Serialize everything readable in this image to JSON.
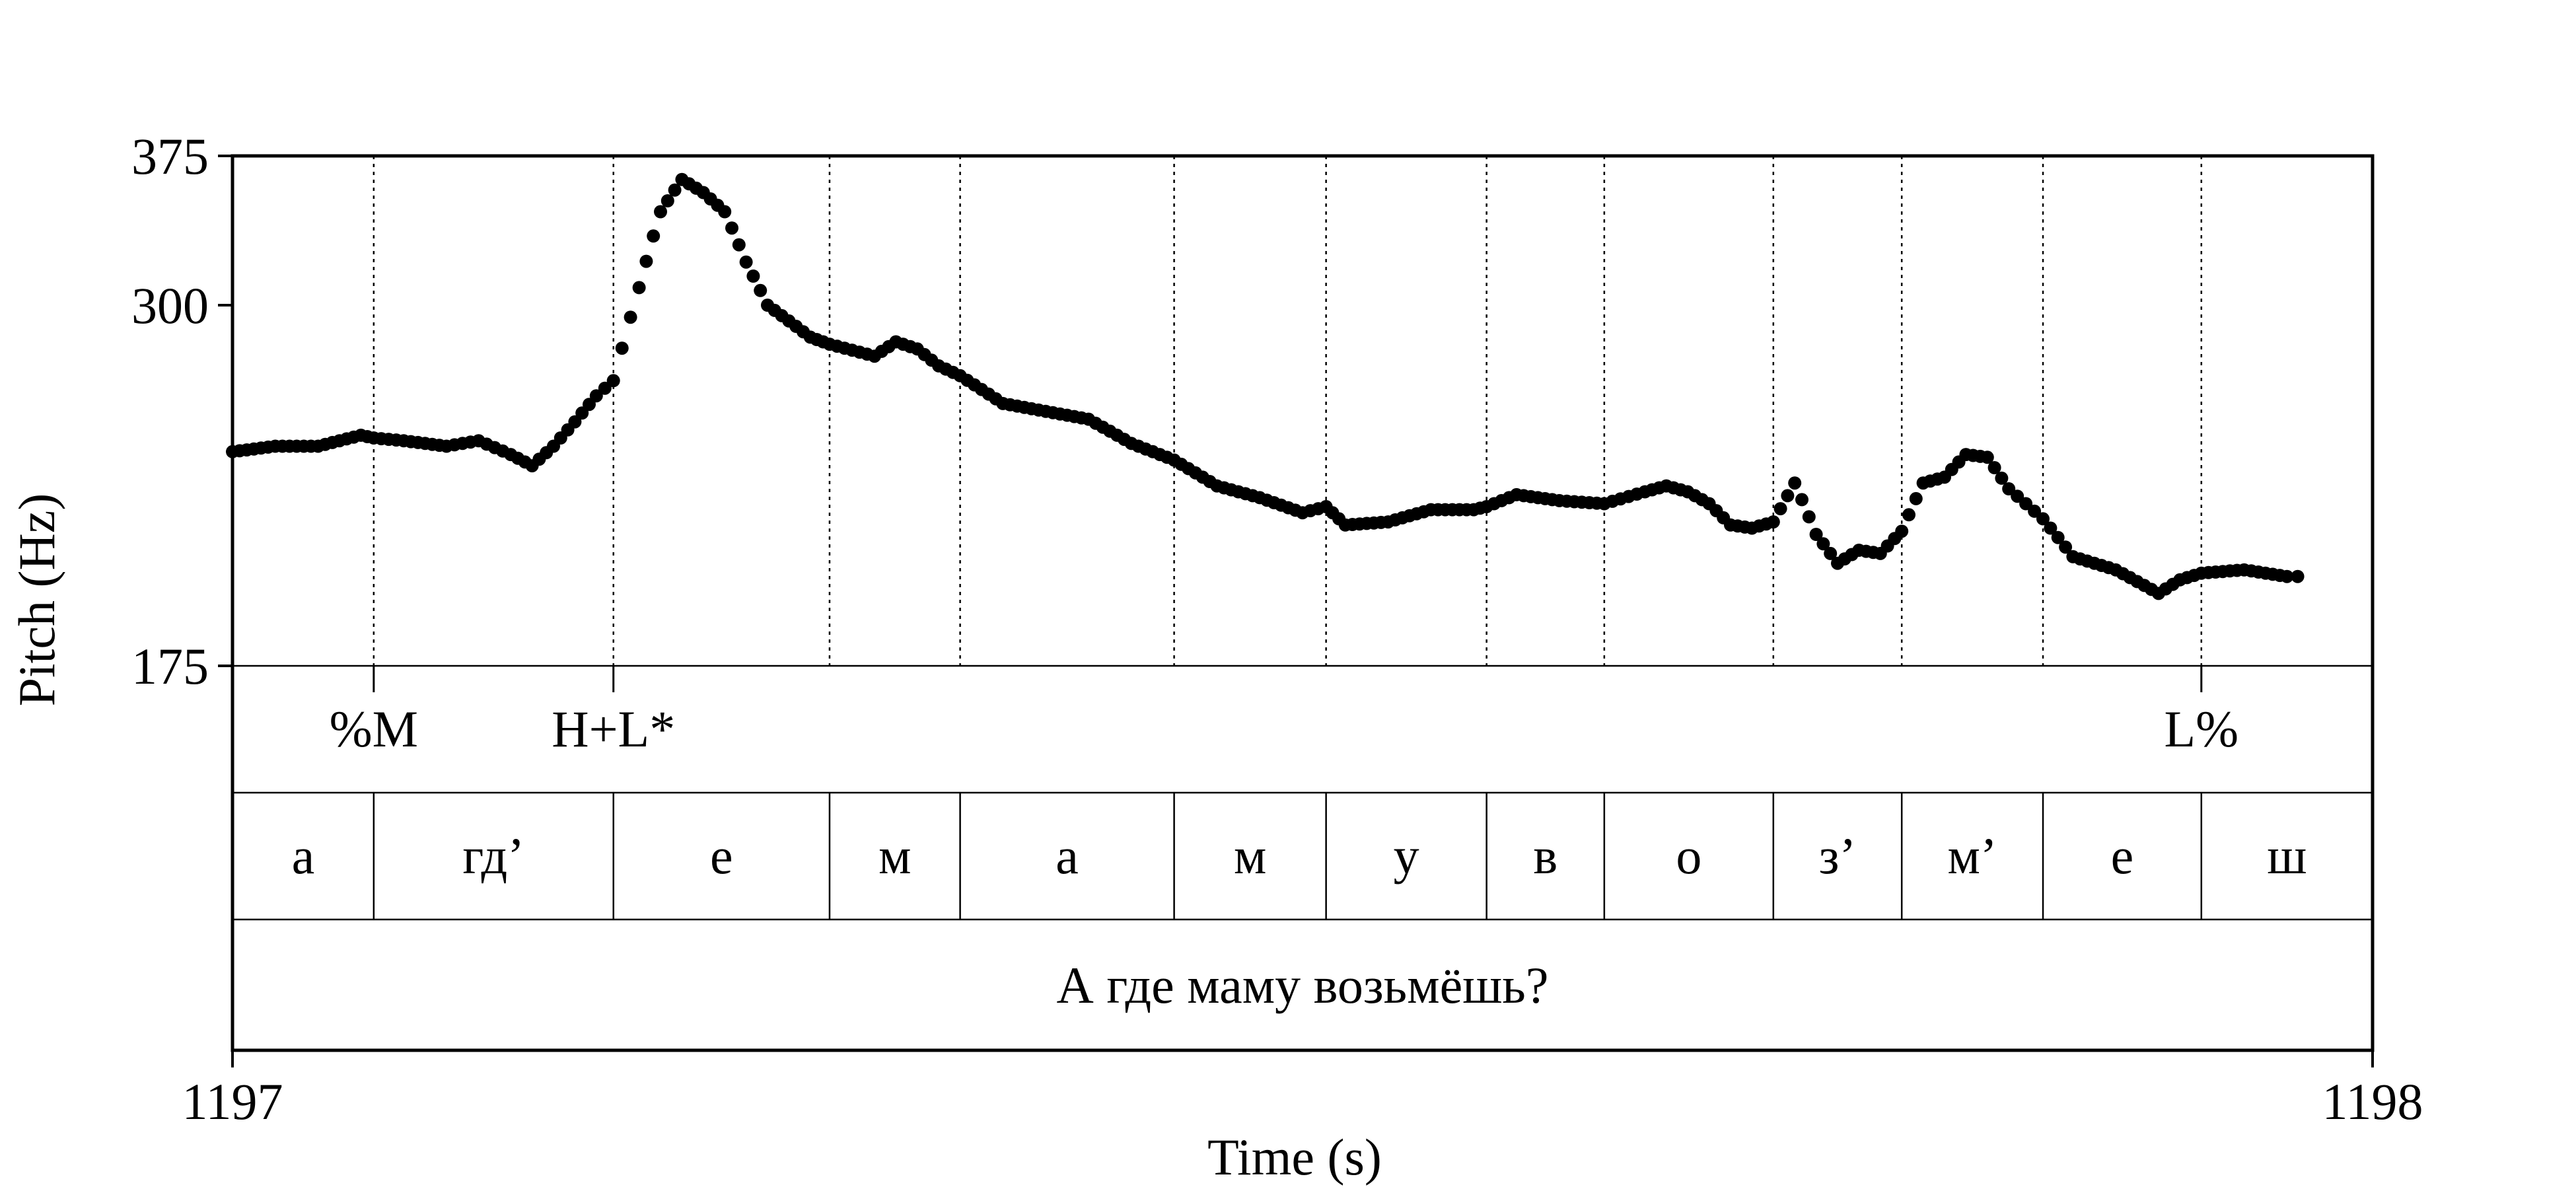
{
  "chart_data": {
    "type": "scatter",
    "xlabel": "Time (s)",
    "ylabel": "Pitch (Hz)",
    "xlim": [
      1197,
      1198
    ],
    "ylim": [
      175,
      375
    ],
    "x_ticks": [
      {
        "value": 1197,
        "label": "1197"
      },
      {
        "value": 1198,
        "label": "1198"
      }
    ],
    "y_ticks": [
      {
        "value": 175,
        "label": "175"
      },
      {
        "value": 300,
        "label": "300"
      },
      {
        "value": 375,
        "label": "375"
      }
    ],
    "boundaries": [
      1197.066,
      1197.178,
      1197.279,
      1197.34,
      1197.44,
      1197.511,
      1197.586,
      1197.641,
      1197.72,
      1197.78,
      1197.846,
      1197.92
    ],
    "tones": [
      {
        "time": 1197.066,
        "label": "%M"
      },
      {
        "time": 1197.178,
        "label": "H+L*"
      },
      {
        "time": 1197.92,
        "label": "L%"
      }
    ],
    "segments": [
      {
        "start": 1197.0,
        "end": 1197.066,
        "label": "а"
      },
      {
        "start": 1197.066,
        "end": 1197.178,
        "label": "гд’"
      },
      {
        "start": 1197.178,
        "end": 1197.279,
        "label": "е"
      },
      {
        "start": 1197.279,
        "end": 1197.34,
        "label": "м"
      },
      {
        "start": 1197.34,
        "end": 1197.44,
        "label": "а"
      },
      {
        "start": 1197.44,
        "end": 1197.511,
        "label": "м"
      },
      {
        "start": 1197.511,
        "end": 1197.586,
        "label": "у"
      },
      {
        "start": 1197.586,
        "end": 1197.641,
        "label": "в"
      },
      {
        "start": 1197.641,
        "end": 1197.72,
        "label": "о"
      },
      {
        "start": 1197.72,
        "end": 1197.78,
        "label": "з’"
      },
      {
        "start": 1197.78,
        "end": 1197.846,
        "label": "м’"
      },
      {
        "start": 1197.846,
        "end": 1197.92,
        "label": "е"
      },
      {
        "start": 1197.92,
        "end": 1198.0,
        "label": "ш"
      }
    ],
    "utterance": "А где маму возьмёшь?",
    "pitch_contour": [
      [
        1197.0,
        241
      ],
      [
        1197.02,
        243
      ],
      [
        1197.04,
        243
      ],
      [
        1197.06,
        247
      ],
      [
        1197.066,
        246
      ],
      [
        1197.08,
        245
      ],
      [
        1197.1,
        243
      ],
      [
        1197.115,
        245
      ],
      [
        1197.13,
        240
      ],
      [
        1197.14,
        236
      ],
      [
        1197.15,
        243
      ],
      [
        1197.16,
        252
      ],
      [
        1197.17,
        262
      ],
      [
        1197.178,
        268
      ],
      [
        1197.19,
        308
      ],
      [
        1197.2,
        345
      ],
      [
        1197.21,
        362
      ],
      [
        1197.22,
        355
      ],
      [
        1197.23,
        345
      ],
      [
        1197.24,
        320
      ],
      [
        1197.25,
        300
      ],
      [
        1197.26,
        293
      ],
      [
        1197.27,
        286
      ],
      [
        1197.279,
        283
      ],
      [
        1197.3,
        278
      ],
      [
        1197.31,
        284
      ],
      [
        1197.32,
        281
      ],
      [
        1197.33,
        274
      ],
      [
        1197.34,
        270
      ],
      [
        1197.36,
        259
      ],
      [
        1197.38,
        256
      ],
      [
        1197.4,
        253
      ],
      [
        1197.42,
        244
      ],
      [
        1197.44,
        238
      ],
      [
        1197.46,
        229
      ],
      [
        1197.48,
        225
      ],
      [
        1197.5,
        220
      ],
      [
        1197.511,
        222
      ],
      [
        1197.52,
        216
      ],
      [
        1197.54,
        217
      ],
      [
        1197.56,
        221
      ],
      [
        1197.58,
        221
      ],
      [
        1197.586,
        222
      ],
      [
        1197.6,
        226
      ],
      [
        1197.62,
        224
      ],
      [
        1197.641,
        223
      ],
      [
        1197.66,
        227
      ],
      [
        1197.67,
        229
      ],
      [
        1197.68,
        227
      ],
      [
        1197.69,
        223
      ],
      [
        1197.7,
        216
      ],
      [
        1197.71,
        215
      ],
      [
        1197.72,
        217
      ],
      [
        1197.73,
        230
      ],
      [
        1197.74,
        213
      ],
      [
        1197.75,
        204
      ],
      [
        1197.76,
        208
      ],
      [
        1197.77,
        207
      ],
      [
        1197.78,
        214
      ],
      [
        1197.79,
        230
      ],
      [
        1197.8,
        232
      ],
      [
        1197.81,
        240
      ],
      [
        1197.82,
        239
      ],
      [
        1197.83,
        228
      ],
      [
        1197.846,
        218
      ],
      [
        1197.86,
        206
      ],
      [
        1197.88,
        202
      ],
      [
        1197.9,
        195
      ],
      [
        1197.91,
        199
      ],
      [
        1197.92,
        201
      ],
      [
        1197.94,
        202
      ],
      [
        1197.96,
        200
      ],
      [
        1197.965,
        200
      ]
    ]
  }
}
